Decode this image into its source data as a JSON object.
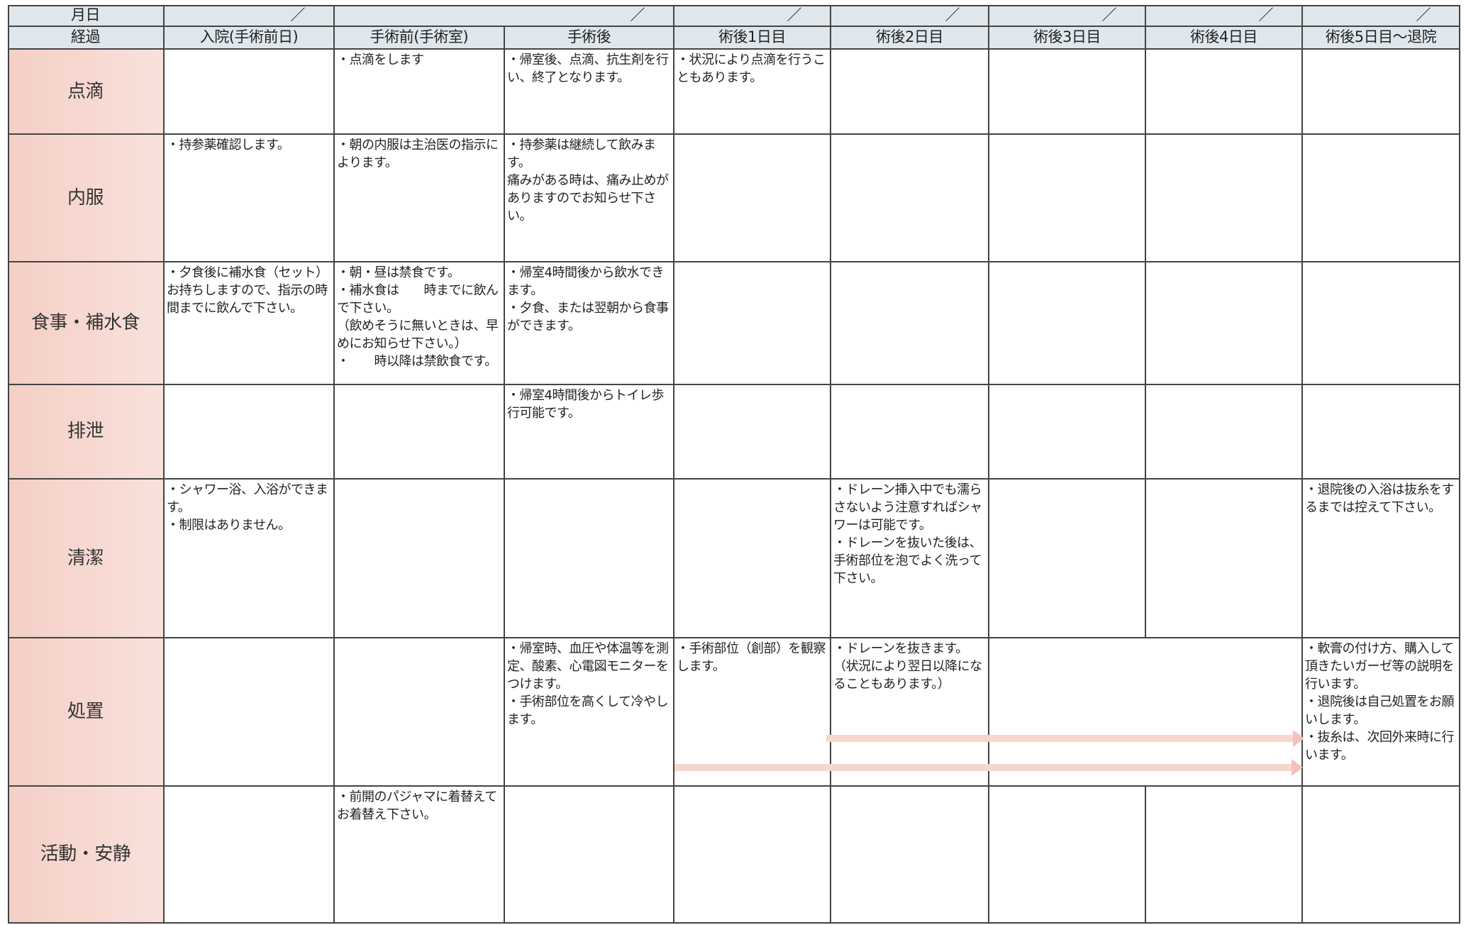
{
  "header": {
    "date_label": "月日",
    "date_marks": [
      "／",
      "／",
      "／",
      "／",
      "／",
      "／"
    ],
    "course_label": "経過",
    "columns": [
      "入院(手術前日)",
      "手術前(手術室)",
      "手術後",
      "術後1日目",
      "術後2日目",
      "術後3日目",
      "術後4日目",
      "術後5日目～退院"
    ]
  },
  "rows": [
    {
      "label": "点滴",
      "cells": [
        null,
        "・点滴をします",
        "・帰室後、点滴、抗生剤を行い、終了となります。",
        "・状況により点滴を行うこともあります。",
        null,
        null,
        null,
        null
      ]
    },
    {
      "label": "内服",
      "cells": [
        "・持参薬確認します。",
        "・朝の内服は主治医の指示によります。",
        "・持参薬は継続して飲みます。\n痛みがある時は、痛み止めがありますのでお知らせ下さい。",
        null,
        null,
        null,
        null,
        null
      ]
    },
    {
      "label": "食事・補水食",
      "cells": [
        "・夕食後に補水食（セット）お持ちしますので、指示の時間までに飲んで下さい。",
        "・朝・昼は禁食です。\n・補水食は　　時までに飲んで下さい。\n（飲めそうに無いときは、早めにお知らせ下さい。）\n・　　時以降は禁飲食です。",
        "・帰室4時間後から飲水できます。\n・夕食、または翌朝から食事ができます。",
        null,
        null,
        null,
        null,
        null
      ]
    },
    {
      "label": "排泄",
      "cells": [
        null,
        null,
        "・帰室4時間後からトイレ歩行可能です。",
        null,
        null,
        null,
        null,
        null
      ]
    },
    {
      "label": "清潔",
      "cells": [
        "・シャワー浴、入浴ができます。\n・制限はありません。",
        null,
        null,
        null,
        "・ドレーン挿入中でも濡らさないよう注意すればシャワーは可能です。\n・ドレーンを抜いた後は、手術部位を泡でよく洗って下さい。",
        null,
        null,
        "・退院後の入浴は抜糸をするまでは控えて下さい。"
      ]
    },
    {
      "label": "処置",
      "cells": [
        null,
        null,
        "・帰室時、血圧や体温等を測定、酸素、心電図モニターをつけます。\n・手術部位を高くして冷やします。",
        "・手術部位（創部）を観察します。",
        "・ドレーンを抜きます。\n（状況により翌日以降になることもあります。）",
        null,
        null,
        "・軟膏の付け方、購入して頂きたいガーゼ等の説明を行います。\n・退院後は自己処置をお願いします。\n・抜糸は、次回外来時に行います。"
      ]
    },
    {
      "label": "活動・安静",
      "cells": [
        null,
        "・前開のパジャマに着替えてお着替え下さい。",
        null,
        null,
        null,
        null,
        null,
        null
      ]
    }
  ]
}
